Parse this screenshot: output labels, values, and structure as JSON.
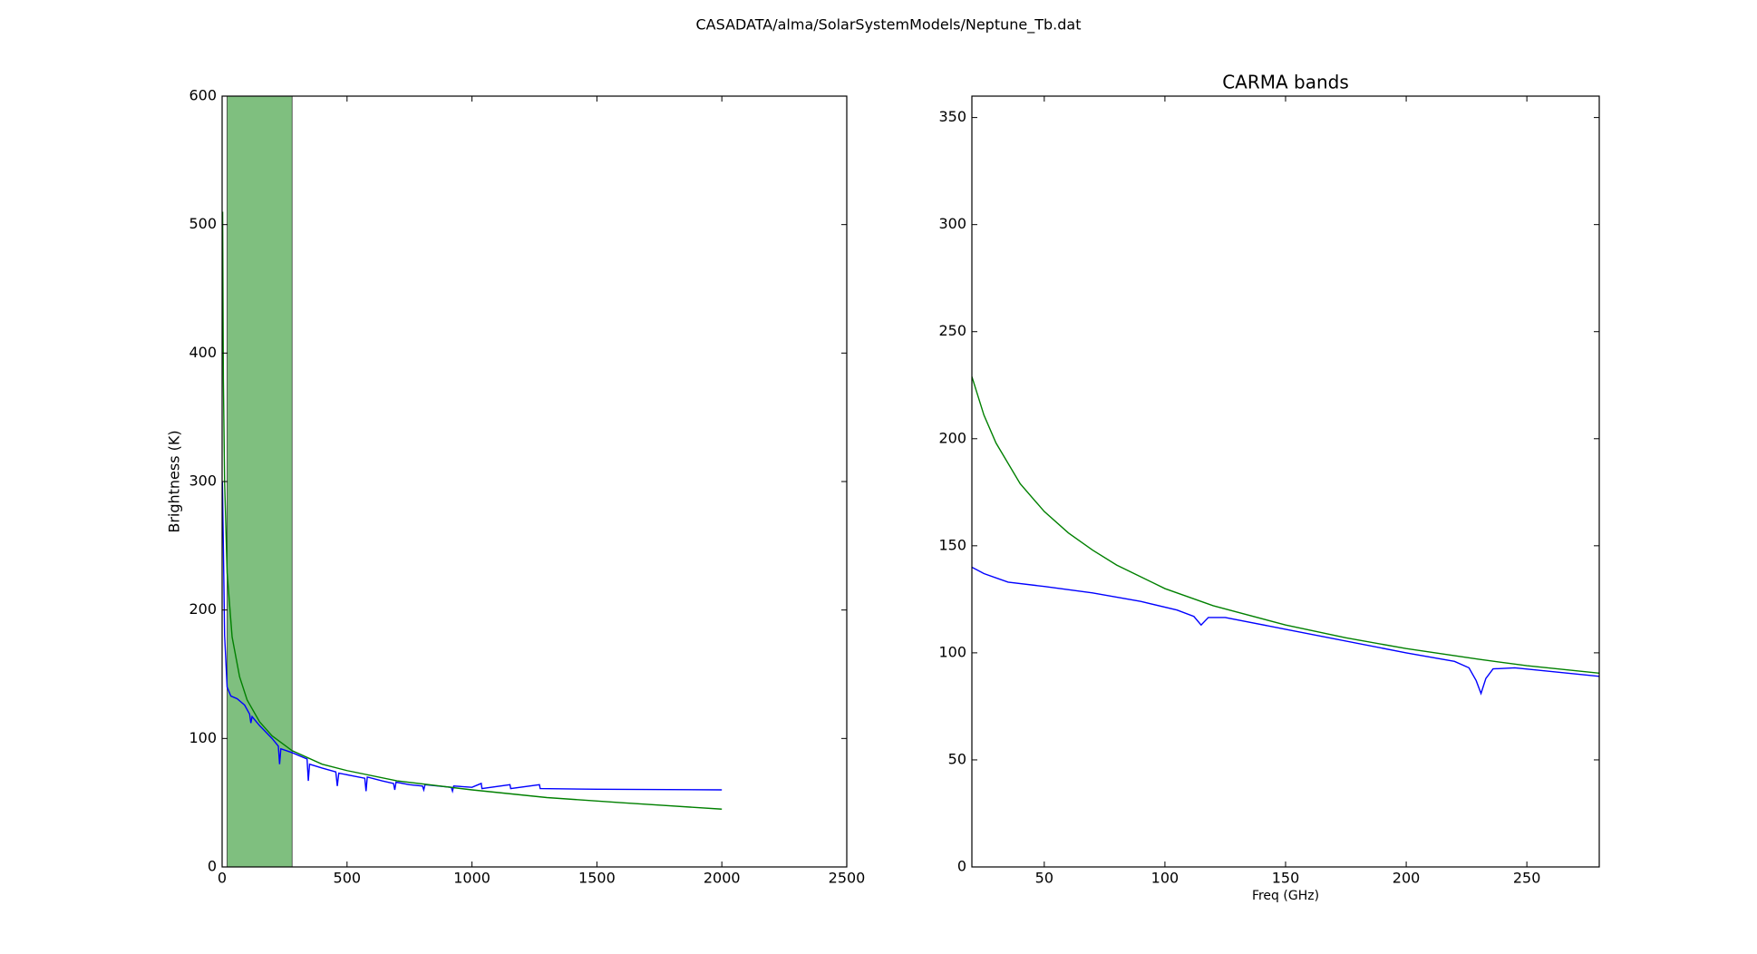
{
  "title": "CASADATA/alma/SolarSystemModels/Neptune_Tb.dat",
  "chart_data": [
    {
      "type": "line",
      "ylabel": "Brightness (K)",
      "xlim": [
        0,
        2500
      ],
      "xticks": [
        0,
        500,
        1000,
        1500,
        2000,
        2500
      ],
      "ylim": [
        0,
        600
      ],
      "yticks": [
        0,
        100,
        200,
        300,
        400,
        500,
        600
      ],
      "span": [
        20,
        280
      ],
      "span_color": "#7fbf7f",
      "series": [
        {
          "color": "#0000ff",
          "x": [
            1,
            5,
            10,
            20,
            35,
            60,
            90,
            110,
            115,
            120,
            150,
            200,
            225,
            230,
            235,
            280,
            340,
            345,
            350,
            400,
            455,
            461,
            467,
            520,
            571,
            576,
            581,
            640,
            686,
            691,
            696,
            750,
            802,
            807,
            812,
            917,
            922,
            927,
            1000,
            1037,
            1040,
            1152,
            1155,
            1270,
            1273,
            1500,
            2000
          ],
          "values": [
            300,
            250,
            180,
            140,
            133,
            131,
            126,
            119,
            112,
            117,
            110,
            100,
            94,
            80,
            92,
            89,
            84,
            67,
            80,
            77,
            74,
            63,
            73,
            71,
            69,
            59,
            70,
            67,
            65,
            60,
            66,
            64,
            63,
            60,
            64,
            62,
            59,
            63,
            62,
            65,
            61,
            64,
            61,
            64,
            61,
            60.5,
            60
          ]
        },
        {
          "color": "#008000",
          "x": [
            2,
            5,
            10,
            20,
            40,
            70,
            100,
            150,
            200,
            280,
            400,
            500,
            700,
            1000,
            1300,
            1600,
            2000
          ],
          "values": [
            510,
            380,
            300,
            229,
            179,
            148,
            130,
            113,
            102,
            90.5,
            80,
            75,
            67,
            60,
            54,
            50,
            45
          ]
        }
      ]
    },
    {
      "type": "line",
      "title": "CARMA bands",
      "xlabel": "Freq (GHz)",
      "xlim": [
        20,
        280
      ],
      "xticks": [
        50,
        100,
        150,
        200,
        250
      ],
      "ylim": [
        0,
        360
      ],
      "yticks": [
        0,
        50,
        100,
        150,
        200,
        250,
        300,
        350
      ],
      "series": [
        {
          "color": "#0000ff",
          "x": [
            20,
            25,
            35,
            50,
            70,
            90,
            105,
            112,
            115,
            118,
            125,
            150,
            200,
            220,
            226,
            229,
            231,
            233,
            236,
            245,
            280
          ],
          "values": [
            140,
            137,
            133,
            131,
            128,
            124,
            120,
            117,
            113,
            116.5,
            116.5,
            111,
            100,
            96,
            93,
            87,
            81,
            88,
            92.5,
            93,
            89
          ]
        },
        {
          "color": "#008000",
          "x": [
            20,
            25,
            30,
            40,
            50,
            60,
            70,
            80,
            100,
            120,
            150,
            175,
            200,
            230,
            250,
            280
          ],
          "values": [
            229,
            211,
            198,
            179,
            166,
            156,
            148,
            141,
            130,
            122,
            113,
            107,
            102,
            97,
            94,
            90.5
          ]
        }
      ]
    }
  ]
}
